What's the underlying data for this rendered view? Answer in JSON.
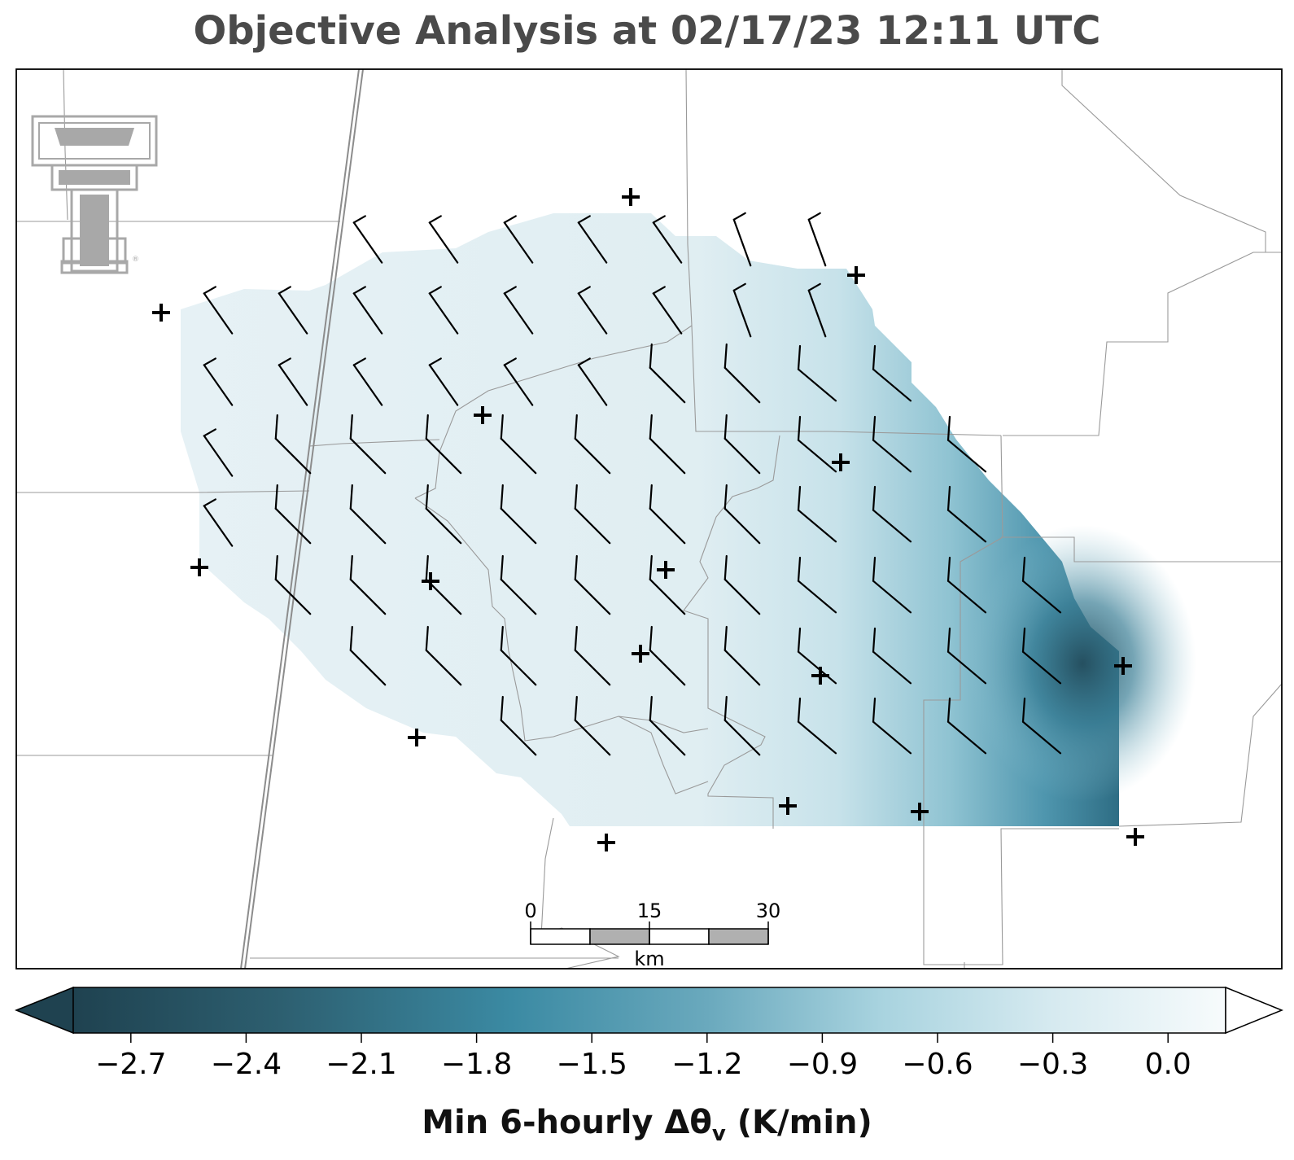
{
  "title": "Objective Analysis at 02/17/23 12:11 UTC",
  "colorbar": {
    "label_main": "Min 6-hourly Δθ",
    "label_sub": "v",
    "label_unit": " (K/min)",
    "ticks": [
      "−2.7",
      "−2.4",
      "−2.1",
      "−1.8",
      "−1.5",
      "−1.2",
      "−0.9",
      "−0.6",
      "−0.3",
      "0.0"
    ],
    "tick_values": [
      -2.7,
      -2.4,
      -2.1,
      -1.8,
      -1.5,
      -1.2,
      -0.9,
      -0.6,
      -0.3,
      0.0
    ],
    "min": -2.85,
    "max": 0.15,
    "dark_color": "#1f4250",
    "mid_color": "#3b8aa3",
    "light_color": "#a8d3df",
    "white_color": "#f7fbfc",
    "extend": "both"
  },
  "scalebar": {
    "labels": [
      "0",
      "15",
      "30"
    ],
    "unit": "km"
  },
  "logo": "texas-tech-double-t-logo",
  "colors": {
    "title": "#4a4a4a",
    "county_lines": "#9a9a9a",
    "state_line": "#8c8c8c",
    "barbs": "#000000",
    "stations": "#000000"
  }
}
